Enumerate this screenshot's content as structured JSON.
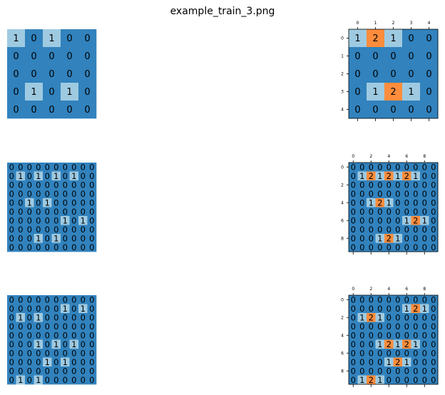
{
  "figure": {
    "title": "example_train_3.png"
  },
  "colors": {
    "0": "#3182bd",
    "1": "#9ecae1",
    "2": "#fd8d3c"
  },
  "chart_data": [
    {
      "type": "heatmap",
      "name": "input-1",
      "show_axes": false,
      "grid": [
        [
          1,
          0,
          1,
          0,
          0
        ],
        [
          0,
          0,
          0,
          0,
          0
        ],
        [
          0,
          0,
          0,
          0,
          0
        ],
        [
          0,
          1,
          0,
          1,
          0
        ],
        [
          0,
          0,
          0,
          0,
          0
        ]
      ]
    },
    {
      "type": "heatmap",
      "name": "output-1",
      "show_axes": true,
      "xticks": [
        0,
        1,
        2,
        3,
        4
      ],
      "yticks": [
        0,
        1,
        2,
        3,
        4
      ],
      "grid": [
        [
          1,
          2,
          1,
          0,
          0
        ],
        [
          0,
          0,
          0,
          0,
          0
        ],
        [
          0,
          0,
          0,
          0,
          0
        ],
        [
          0,
          1,
          2,
          1,
          0
        ],
        [
          0,
          0,
          0,
          0,
          0
        ]
      ]
    },
    {
      "type": "heatmap",
      "name": "input-2",
      "show_axes": false,
      "grid": [
        [
          0,
          0,
          0,
          0,
          0,
          0,
          0,
          0,
          0,
          0
        ],
        [
          0,
          1,
          0,
          1,
          0,
          1,
          0,
          1,
          0,
          0
        ],
        [
          0,
          0,
          0,
          0,
          0,
          0,
          0,
          0,
          0,
          0
        ],
        [
          0,
          0,
          0,
          0,
          0,
          0,
          0,
          0,
          0,
          0
        ],
        [
          0,
          0,
          1,
          0,
          1,
          0,
          0,
          0,
          0,
          0
        ],
        [
          0,
          0,
          0,
          0,
          0,
          0,
          0,
          0,
          0,
          0
        ],
        [
          0,
          0,
          0,
          0,
          0,
          0,
          1,
          0,
          1,
          0
        ],
        [
          0,
          0,
          0,
          0,
          0,
          0,
          0,
          0,
          0,
          0
        ],
        [
          0,
          0,
          0,
          1,
          0,
          1,
          0,
          0,
          0,
          0
        ],
        [
          0,
          0,
          0,
          0,
          0,
          0,
          0,
          0,
          0,
          0
        ]
      ]
    },
    {
      "type": "heatmap",
      "name": "output-2",
      "show_axes": true,
      "xticks": [
        0,
        2,
        4,
        6,
        8
      ],
      "yticks": [
        0,
        2,
        4,
        6,
        8
      ],
      "grid": [
        [
          0,
          0,
          0,
          0,
          0,
          0,
          0,
          0,
          0,
          0
        ],
        [
          0,
          1,
          2,
          1,
          2,
          1,
          2,
          1,
          0,
          0
        ],
        [
          0,
          0,
          0,
          0,
          0,
          0,
          0,
          0,
          0,
          0
        ],
        [
          0,
          0,
          0,
          0,
          0,
          0,
          0,
          0,
          0,
          0
        ],
        [
          0,
          0,
          1,
          2,
          1,
          0,
          0,
          0,
          0,
          0
        ],
        [
          0,
          0,
          0,
          0,
          0,
          0,
          0,
          0,
          0,
          0
        ],
        [
          0,
          0,
          0,
          0,
          0,
          0,
          1,
          2,
          1,
          0
        ],
        [
          0,
          0,
          0,
          0,
          0,
          0,
          0,
          0,
          0,
          0
        ],
        [
          0,
          0,
          0,
          1,
          2,
          1,
          0,
          0,
          0,
          0
        ],
        [
          0,
          0,
          0,
          0,
          0,
          0,
          0,
          0,
          0,
          0
        ]
      ]
    },
    {
      "type": "heatmap",
      "name": "input-3",
      "show_axes": false,
      "grid": [
        [
          0,
          0,
          0,
          0,
          0,
          0,
          0,
          0,
          0,
          0
        ],
        [
          0,
          0,
          0,
          0,
          0,
          0,
          1,
          0,
          1,
          0
        ],
        [
          0,
          1,
          0,
          1,
          0,
          0,
          0,
          0,
          0,
          0
        ],
        [
          0,
          0,
          0,
          0,
          0,
          0,
          0,
          0,
          0,
          0
        ],
        [
          0,
          0,
          0,
          0,
          0,
          0,
          0,
          0,
          0,
          0
        ],
        [
          0,
          0,
          0,
          1,
          0,
          1,
          0,
          1,
          0,
          0
        ],
        [
          0,
          0,
          0,
          0,
          0,
          0,
          0,
          0,
          0,
          0
        ],
        [
          0,
          0,
          0,
          0,
          1,
          0,
          1,
          0,
          0,
          0
        ],
        [
          0,
          0,
          0,
          0,
          0,
          0,
          0,
          0,
          0,
          0
        ],
        [
          0,
          1,
          0,
          1,
          0,
          0,
          0,
          0,
          0,
          0
        ]
      ]
    },
    {
      "type": "heatmap",
      "name": "output-3",
      "show_axes": true,
      "xticks": [
        0,
        2,
        4,
        6,
        8
      ],
      "yticks": [
        0,
        2,
        4,
        6,
        8
      ],
      "grid": [
        [
          0,
          0,
          0,
          0,
          0,
          0,
          0,
          0,
          0,
          0
        ],
        [
          0,
          0,
          0,
          0,
          0,
          0,
          1,
          2,
          1,
          0
        ],
        [
          0,
          1,
          2,
          1,
          0,
          0,
          0,
          0,
          0,
          0
        ],
        [
          0,
          0,
          0,
          0,
          0,
          0,
          0,
          0,
          0,
          0
        ],
        [
          0,
          0,
          0,
          0,
          0,
          0,
          0,
          0,
          0,
          0
        ],
        [
          0,
          0,
          0,
          1,
          2,
          1,
          2,
          1,
          0,
          0
        ],
        [
          0,
          0,
          0,
          0,
          0,
          0,
          0,
          0,
          0,
          0
        ],
        [
          0,
          0,
          0,
          0,
          1,
          2,
          1,
          0,
          0,
          0
        ],
        [
          0,
          0,
          0,
          0,
          0,
          0,
          0,
          0,
          0,
          0
        ],
        [
          0,
          1,
          2,
          1,
          0,
          0,
          0,
          0,
          0,
          0
        ]
      ]
    }
  ]
}
